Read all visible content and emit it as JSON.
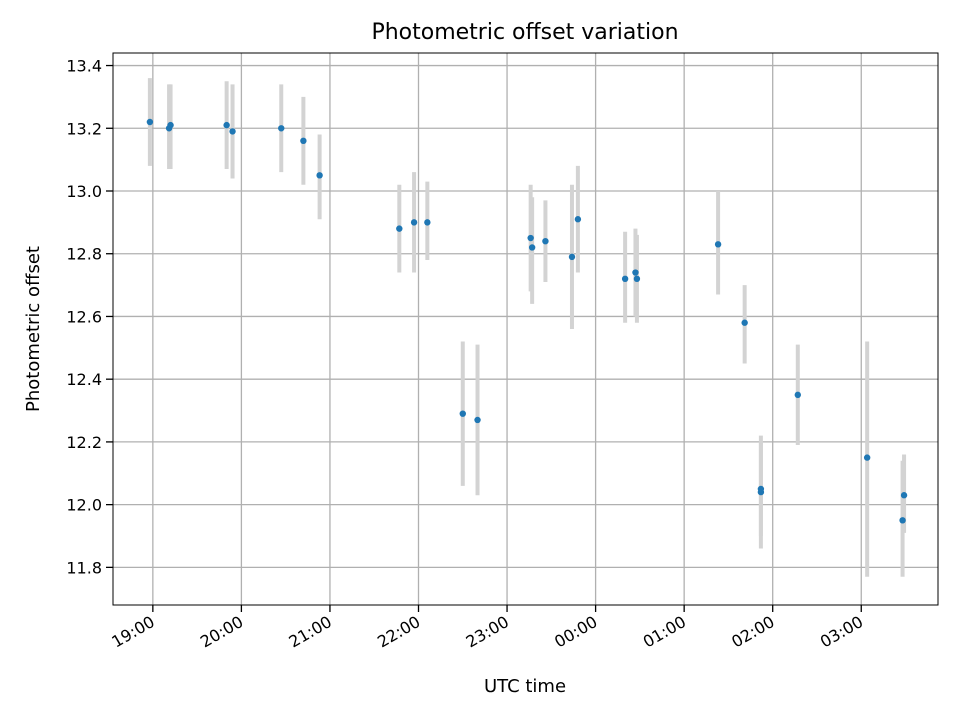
{
  "chart_data": {
    "type": "scatter",
    "title": "Photometric offset variation",
    "xlabel": "UTC time",
    "ylabel": "Photometric offset",
    "x_axis_kind": "time (UTC), overnight",
    "xlim": [
      "18:33",
      "03:52"
    ],
    "ylim": [
      11.68,
      13.44
    ],
    "x_ticks": [
      "19:00",
      "20:00",
      "21:00",
      "22:00",
      "23:00",
      "00:00",
      "01:00",
      "02:00",
      "03:00"
    ],
    "y_ticks": [
      "11.8",
      "12.0",
      "12.2",
      "12.4",
      "12.6",
      "12.8",
      "13.0",
      "13.2",
      "13.4"
    ],
    "grid": true,
    "legend": "none",
    "colors": {
      "marker": "#1f77b4",
      "errorbar": "#d3d3d3",
      "grid": "#b0b0b0"
    },
    "series": [
      {
        "points": [
          {
            "t": "18:58",
            "y": 13.22,
            "lo": 13.08,
            "hi": 13.36
          },
          {
            "t": "19:12",
            "y": 13.21,
            "lo": 13.07,
            "hi": 13.34
          },
          {
            "t": "19:11",
            "y": 13.2,
            "lo": 13.07,
            "hi": 13.34
          },
          {
            "t": "19:50",
            "y": 13.21,
            "lo": 13.07,
            "hi": 13.35
          },
          {
            "t": "19:54",
            "y": 13.19,
            "lo": 13.04,
            "hi": 13.34
          },
          {
            "t": "20:27",
            "y": 13.2,
            "lo": 13.06,
            "hi": 13.34
          },
          {
            "t": "20:42",
            "y": 13.16,
            "lo": 13.02,
            "hi": 13.3
          },
          {
            "t": "20:53",
            "y": 13.05,
            "lo": 12.91,
            "hi": 13.18
          },
          {
            "t": "21:47",
            "y": 12.88,
            "lo": 12.74,
            "hi": 13.02
          },
          {
            "t": "21:57",
            "y": 12.9,
            "lo": 12.74,
            "hi": 13.06
          },
          {
            "t": "22:06",
            "y": 12.9,
            "lo": 12.78,
            "hi": 13.03
          },
          {
            "t": "22:30",
            "y": 12.29,
            "lo": 12.06,
            "hi": 12.52
          },
          {
            "t": "22:40",
            "y": 12.27,
            "lo": 12.03,
            "hi": 12.51
          },
          {
            "t": "23:16",
            "y": 12.85,
            "lo": 12.68,
            "hi": 13.02
          },
          {
            "t": "23:17",
            "y": 12.82,
            "lo": 12.64,
            "hi": 12.98
          },
          {
            "t": "23:26",
            "y": 12.84,
            "lo": 12.71,
            "hi": 12.97
          },
          {
            "t": "23:44",
            "y": 12.79,
            "lo": 12.56,
            "hi": 13.02
          },
          {
            "t": "23:48",
            "y": 12.91,
            "lo": 12.74,
            "hi": 13.08
          },
          {
            "t": "00:20",
            "y": 12.72,
            "lo": 12.58,
            "hi": 12.87
          },
          {
            "t": "00:27",
            "y": 12.74,
            "lo": 12.6,
            "hi": 12.88
          },
          {
            "t": "00:28",
            "y": 12.72,
            "lo": 12.58,
            "hi": 12.86
          },
          {
            "t": "01:23",
            "y": 12.83,
            "lo": 12.67,
            "hi": 13.0
          },
          {
            "t": "01:41",
            "y": 12.58,
            "lo": 12.45,
            "hi": 12.7
          },
          {
            "t": "01:52",
            "y": 12.05,
            "lo": 11.9,
            "hi": 12.22
          },
          {
            "t": "01:52",
            "y": 12.04,
            "lo": 11.86,
            "hi": 12.2
          },
          {
            "t": "02:17",
            "y": 12.35,
            "lo": 12.19,
            "hi": 12.51
          },
          {
            "t": "03:04",
            "y": 12.15,
            "lo": 11.77,
            "hi": 12.52
          },
          {
            "t": "03:29",
            "y": 12.03,
            "lo": 11.91,
            "hi": 12.16
          },
          {
            "t": "03:28",
            "y": 11.95,
            "lo": 11.77,
            "hi": 12.14
          }
        ]
      }
    ]
  }
}
